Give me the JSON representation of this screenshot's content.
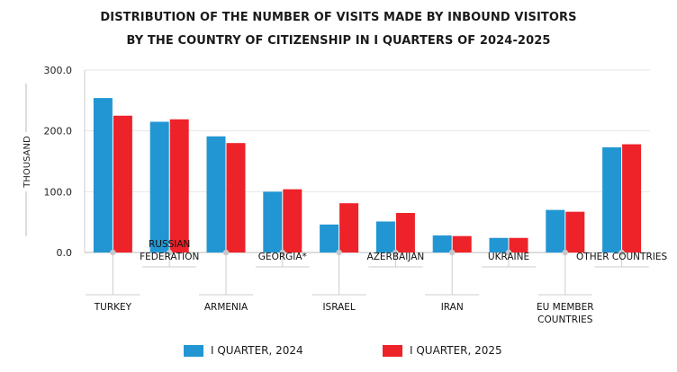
{
  "title_line1": "DISTRIBUTION OF THE NUMBER OF VISITS MADE BY INBOUND VISITORS",
  "title_line2": "BY THE COUNTRY OF CITIZENSHIP IN I QUARTERS OF 2024-2025",
  "colors": {
    "q2024": "#2196d3",
    "q2025": "#ee2229"
  },
  "chart_data": {
    "type": "bar",
    "title": "DISTRIBUTION OF THE NUMBER OF VISITS MADE BY INBOUND VISITORS BY THE COUNTRY OF CITIZENSHIP IN I QUARTERS OF 2024-2025",
    "ylabel": "THOUSAND",
    "ylim": [
      0,
      300
    ],
    "yticks": [
      "0.0",
      "100.0",
      "200.0",
      "300.0"
    ],
    "categories": [
      [
        "TURKEY"
      ],
      [
        "RUSSIAN",
        "FEDERATION"
      ],
      [
        "ARMENIA"
      ],
      [
        "GEORGIA*"
      ],
      [
        "ISRAEL"
      ],
      [
        "AZERBAIJAN"
      ],
      [
        "IRAN"
      ],
      [
        "UKRAINE"
      ],
      [
        "EU MEMBER",
        "COUNTRIES"
      ],
      [
        "OTHER COUNTRIES"
      ]
    ],
    "series": [
      {
        "name": "I QUARTER, 2024",
        "values": [
          254,
          215,
          191,
          100,
          46,
          51,
          28,
          24,
          70,
          173
        ]
      },
      {
        "name": "I QUARTER, 2025",
        "values": [
          225,
          219,
          180,
          104,
          81,
          65,
          27,
          24,
          67,
          178
        ]
      }
    ],
    "grid": true,
    "legend": "bottom"
  }
}
